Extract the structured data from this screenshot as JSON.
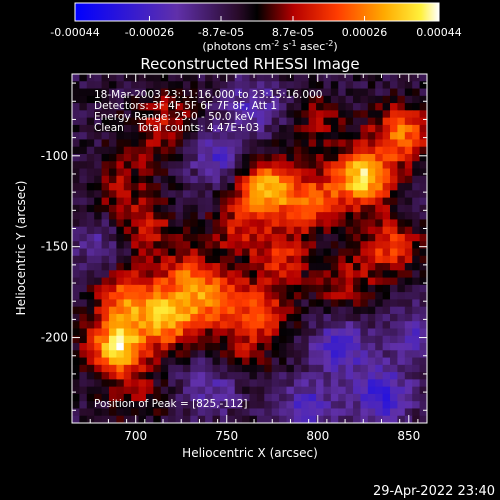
{
  "chart_data": {
    "type": "heatmap",
    "title": "Reconstructed RHESSI Image",
    "xlabel": "Heliocentric X (arcsec)",
    "ylabel": "Heliocentric Y (arcsec)",
    "xlim": [
      665,
      860
    ],
    "ylim": [
      -247,
      -55
    ],
    "x_ticks": [
      700,
      750,
      800,
      850
    ],
    "y_ticks": [
      -100,
      -150,
      -200
    ],
    "colorbar": {
      "min": -0.00044,
      "max": 0.00044,
      "ticks": [
        -0.00044,
        -0.00026,
        -8.7e-05,
        8.7e-05,
        0.00026,
        0.00044
      ],
      "tick_labels": [
        "-0.00044",
        "-0.00026",
        "-8.7e-05",
        "8.7e-05",
        "0.00026",
        "0.00044"
      ],
      "unit_label": "(photons cm",
      "unit_exp1": "-2",
      "unit_mid": " s",
      "unit_exp2": "-1",
      "unit_mid2": " asec",
      "unit_exp3": "-2",
      "unit_close": ")"
    },
    "annotations": [
      "18-Mar-2003 23:11:16.000 to 23:15:16.000",
      "Detectors: 3F 4F 5F 6F 7F 8F, Att 1",
      "Energy Range: 25.0 - 50.0 keV",
      "Clean    Total counts: 4.47E+03"
    ],
    "peak_label": "Position of Peak = [825,-112]",
    "sources": [
      {
        "x": 690,
        "y": -205,
        "value": 0.00044
      },
      {
        "x": 718,
        "y": -190,
        "value": 0.00036
      },
      {
        "x": 695,
        "y": -178,
        "value": 0.00028
      },
      {
        "x": 745,
        "y": -180,
        "value": 0.00026
      },
      {
        "x": 728,
        "y": -168,
        "value": 0.00024
      },
      {
        "x": 770,
        "y": -185,
        "value": 0.00022
      },
      {
        "x": 825,
        "y": -112,
        "value": 0.00044
      },
      {
        "x": 772,
        "y": -118,
        "value": 0.0004
      },
      {
        "x": 798,
        "y": -125,
        "value": 0.00026
      },
      {
        "x": 846,
        "y": -88,
        "value": 0.0003
      },
      {
        "x": 840,
        "y": -150,
        "value": 0.00024
      },
      {
        "x": 780,
        "y": -155,
        "value": 0.0002
      },
      {
        "x": 755,
        "y": -140,
        "value": 0.00016
      },
      {
        "x": 706,
        "y": -140,
        "value": 0.00018
      },
      {
        "x": 690,
        "y": -118,
        "value": 0.00012
      },
      {
        "x": 718,
        "y": -78,
        "value": 0.00014
      },
      {
        "x": 705,
        "y": -95,
        "value": 0.0001
      },
      {
        "x": 815,
        "y": -170,
        "value": 0.00016
      },
      {
        "x": 800,
        "y": -82,
        "value": 0.00012
      },
      {
        "x": 700,
        "y": -232,
        "value": 0.0001
      },
      {
        "x": 760,
        "y": -208,
        "value": 0.00012
      },
      {
        "x": 745,
        "y": -100,
        "value": -0.00018
      },
      {
        "x": 765,
        "y": -72,
        "value": -0.00016
      },
      {
        "x": 812,
        "y": -205,
        "value": -0.0002
      },
      {
        "x": 835,
        "y": -232,
        "value": -0.00024
      },
      {
        "x": 742,
        "y": -228,
        "value": -0.00014
      },
      {
        "x": 680,
        "y": -150,
        "value": -0.00012
      },
      {
        "x": 852,
        "y": -200,
        "value": -0.00016
      },
      {
        "x": 795,
        "y": -238,
        "value": -0.00018
      }
    ]
  },
  "footer": {
    "timestamp": "29-Apr-2022 23:40"
  }
}
